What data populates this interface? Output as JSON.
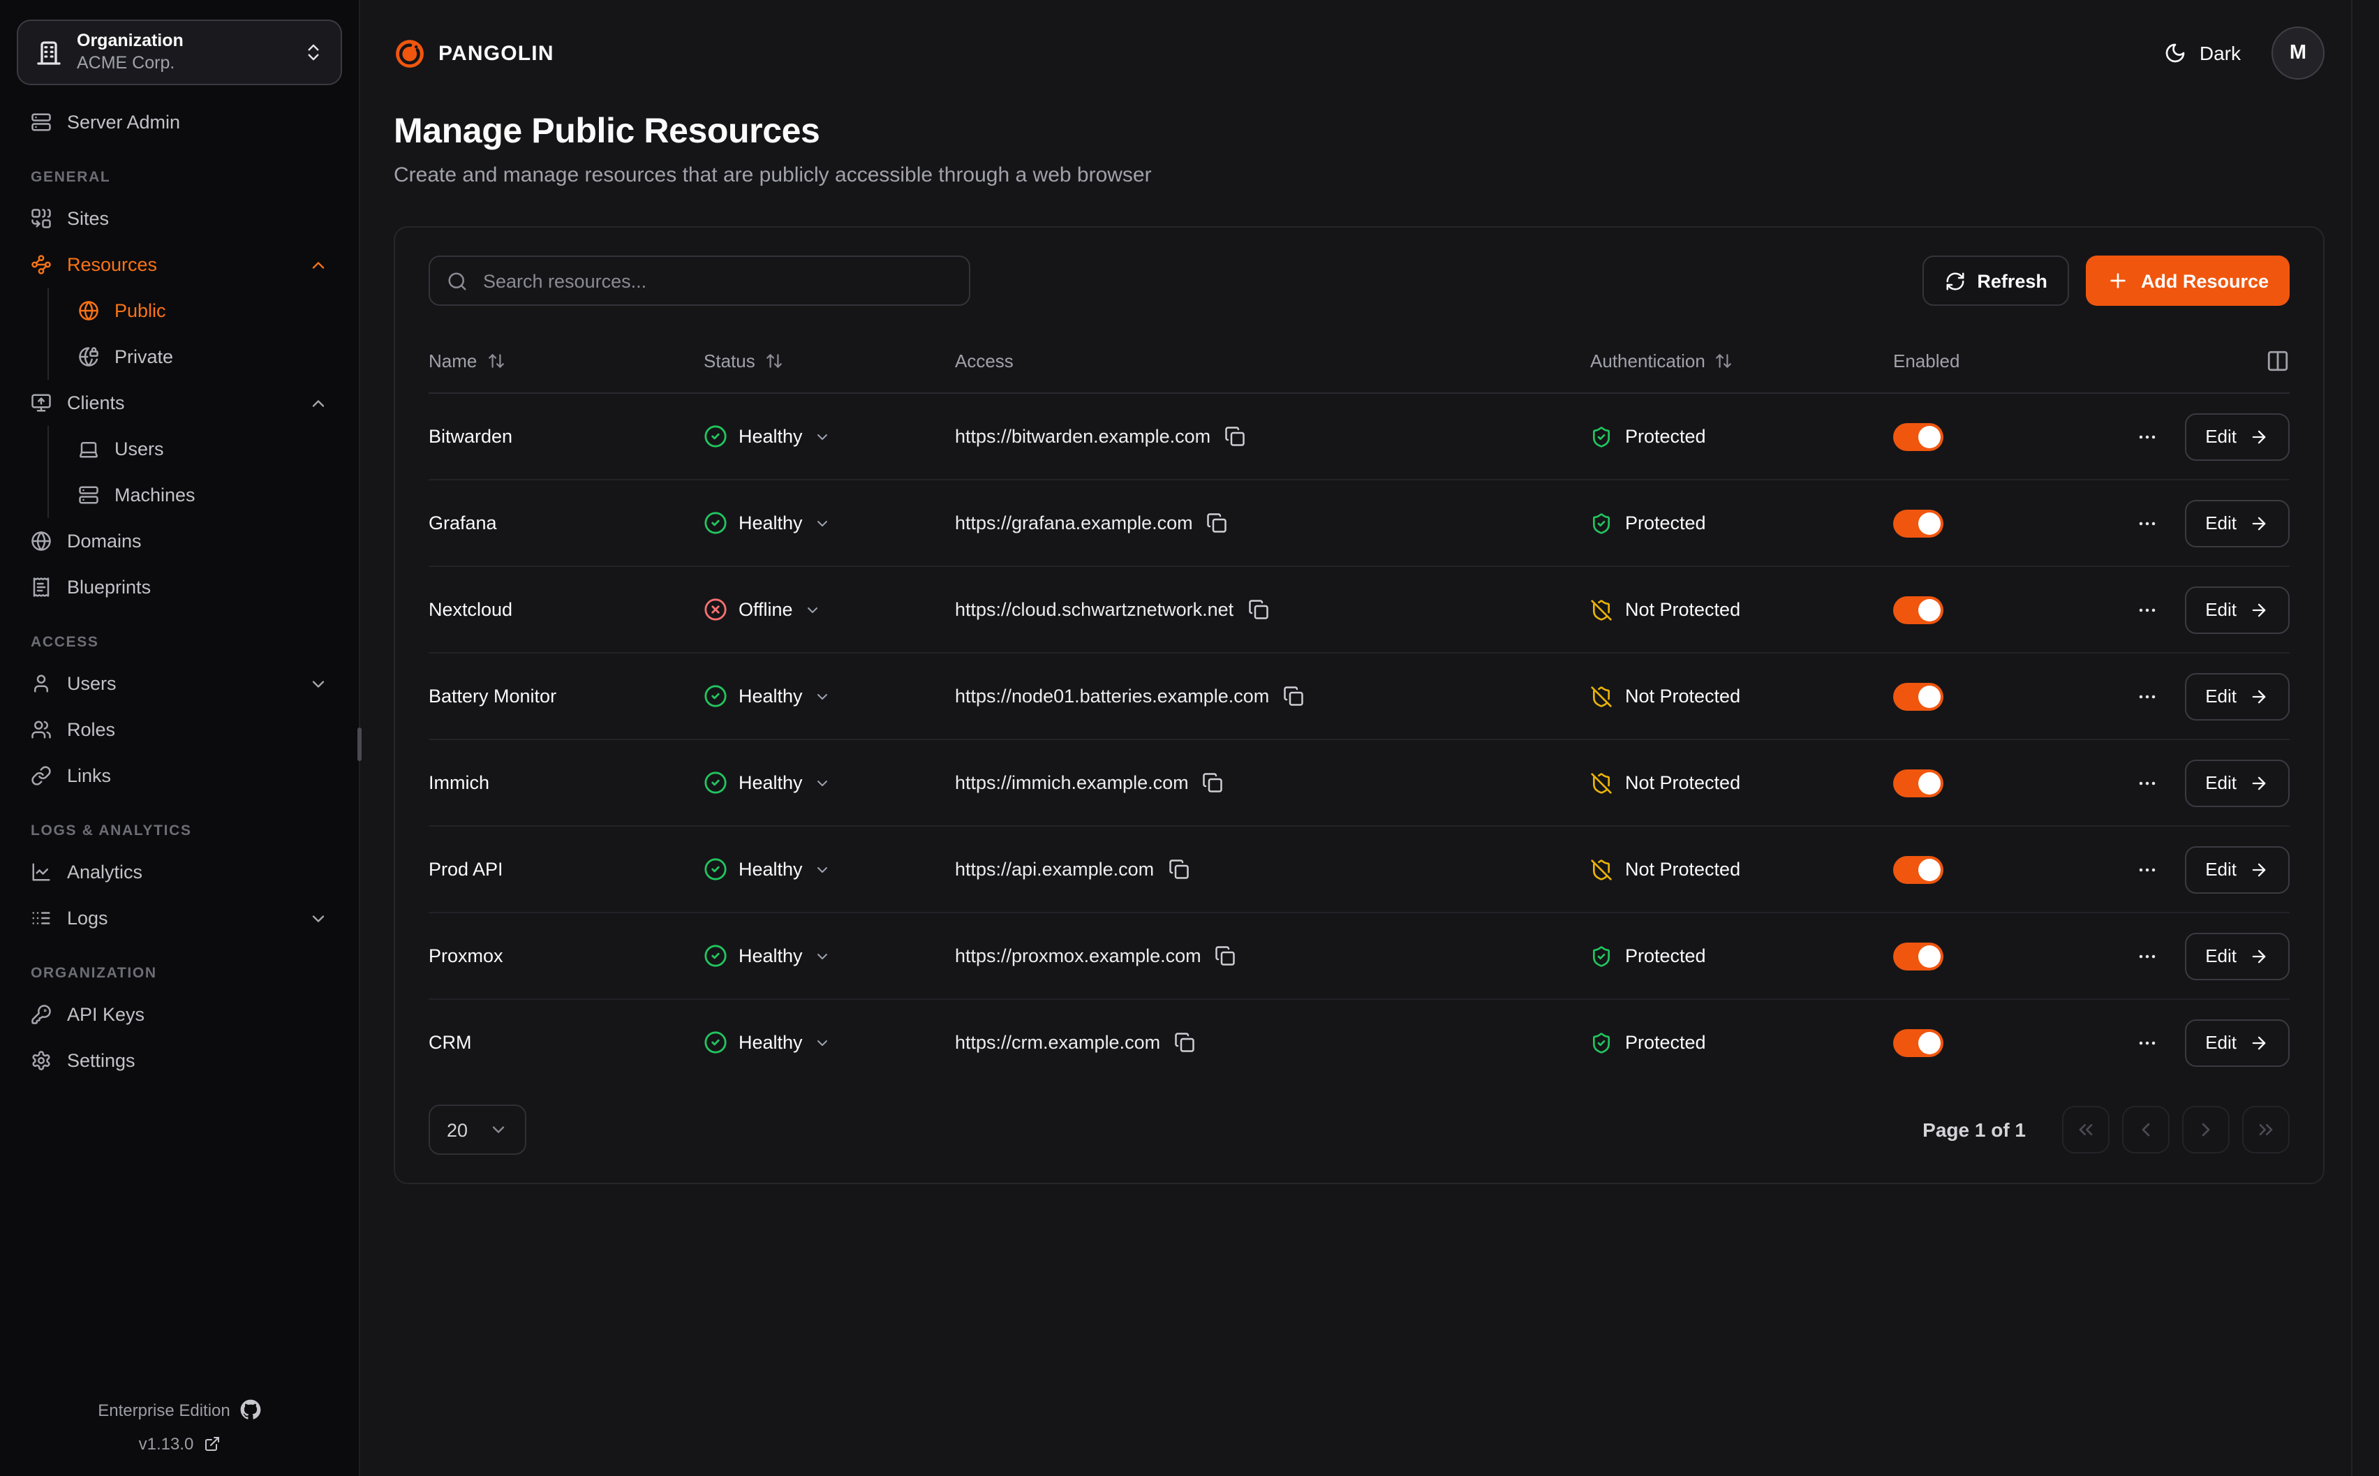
{
  "brand": {
    "name": "PANGOLIN"
  },
  "colors": {
    "accent": "#f0560e",
    "accent_text": "#f97316",
    "healthy": "#22c55e",
    "offline": "#f87171",
    "protected": "#22c55e",
    "not_protected": "#eab308",
    "sidebar_bg": "#0b0b0d",
    "page_bg": "#151518"
  },
  "topbar": {
    "theme_toggle_label": "Dark",
    "theme_icon": "moon",
    "avatar_initial": "M"
  },
  "org_selector": {
    "label": "Organization",
    "value": "ACME Corp.",
    "icon": "building"
  },
  "sidebar": {
    "standalone": [
      {
        "id": "server-admin",
        "label": "Server Admin",
        "icon": "server"
      }
    ],
    "sections": [
      {
        "label": "GENERAL",
        "items": [
          {
            "id": "sites",
            "label": "Sites",
            "icon": "combine"
          },
          {
            "id": "resources",
            "label": "Resources",
            "icon": "waypoints",
            "active": true,
            "chevron": "up",
            "chevron_accent": true,
            "children": [
              {
                "id": "public",
                "label": "Public",
                "icon": "globe",
                "active": true
              },
              {
                "id": "private",
                "label": "Private",
                "icon": "globe-lock"
              }
            ]
          },
          {
            "id": "clients",
            "label": "Clients",
            "icon": "monitor-up",
            "chevron": "up",
            "children": [
              {
                "id": "client-users",
                "label": "Users",
                "icon": "laptop"
              },
              {
                "id": "machines",
                "label": "Machines",
                "icon": "server"
              }
            ]
          },
          {
            "id": "domains",
            "label": "Domains",
            "icon": "globe"
          },
          {
            "id": "blueprints",
            "label": "Blueprints",
            "icon": "receipt"
          }
        ]
      },
      {
        "label": "ACCESS",
        "items": [
          {
            "id": "users",
            "label": "Users",
            "icon": "user",
            "chevron": "down"
          },
          {
            "id": "roles",
            "label": "Roles",
            "icon": "users"
          },
          {
            "id": "links",
            "label": "Links",
            "icon": "link"
          }
        ]
      },
      {
        "label": "LOGS & ANALYTICS",
        "items": [
          {
            "id": "analytics",
            "label": "Analytics",
            "icon": "chart"
          },
          {
            "id": "logs",
            "label": "Logs",
            "icon": "logs",
            "chevron": "down"
          }
        ]
      },
      {
        "label": "ORGANIZATION",
        "items": [
          {
            "id": "api-keys",
            "label": "API Keys",
            "icon": "key"
          },
          {
            "id": "settings",
            "label": "Settings",
            "icon": "gear"
          }
        ]
      }
    ],
    "footer": {
      "edition": "Enterprise Edition",
      "edition_icon": "github",
      "version": "v1.13.0",
      "version_icon": "external-link"
    }
  },
  "page": {
    "title": "Manage Public Resources",
    "subtitle": "Create and manage resources that are publicly accessible through a web browser"
  },
  "toolbar": {
    "search_placeholder": "Search resources...",
    "search_icon": "search",
    "refresh_label": "Refresh",
    "refresh_icon": "refresh",
    "add_label": "Add Resource",
    "add_icon": "plus"
  },
  "table": {
    "edit_label": "Edit",
    "columns_icon": "columns-2",
    "columns": [
      {
        "label": "Name",
        "sortable": true
      },
      {
        "label": "Status",
        "sortable": true
      },
      {
        "label": "Access",
        "sortable": false
      },
      {
        "label": "Authentication",
        "sortable": true
      },
      {
        "label": "Enabled",
        "sortable": false
      }
    ],
    "rows": [
      {
        "name": "Bitwarden",
        "status": "Healthy",
        "status_state": "healthy",
        "url": "https://bitwarden.example.com",
        "auth": "Protected",
        "auth_state": "protected",
        "enabled": true
      },
      {
        "name": "Grafana",
        "status": "Healthy",
        "status_state": "healthy",
        "url": "https://grafana.example.com",
        "auth": "Protected",
        "auth_state": "protected",
        "enabled": true
      },
      {
        "name": "Nextcloud",
        "status": "Offline",
        "status_state": "offline",
        "url": "https://cloud.schwartznetwork.net",
        "auth": "Not Protected",
        "auth_state": "not-protected",
        "enabled": true
      },
      {
        "name": "Battery Monitor",
        "status": "Healthy",
        "status_state": "healthy",
        "url": "https://node01.batteries.example.com",
        "auth": "Not Protected",
        "auth_state": "not-protected",
        "enabled": true
      },
      {
        "name": "Immich",
        "status": "Healthy",
        "status_state": "healthy",
        "url": "https://immich.example.com",
        "auth": "Not Protected",
        "auth_state": "not-protected",
        "enabled": true
      },
      {
        "name": "Prod API",
        "status": "Healthy",
        "status_state": "healthy",
        "url": "https://api.example.com",
        "auth": "Not Protected",
        "auth_state": "not-protected",
        "enabled": true
      },
      {
        "name": "Proxmox",
        "status": "Healthy",
        "status_state": "healthy",
        "url": "https://proxmox.example.com",
        "auth": "Protected",
        "auth_state": "protected",
        "enabled": true
      },
      {
        "name": "CRM",
        "status": "Healthy",
        "status_state": "healthy",
        "url": "https://crm.example.com",
        "auth": "Protected",
        "auth_state": "protected",
        "enabled": true
      }
    ]
  },
  "pagination": {
    "page_size": "20",
    "page_info": "Page 1 of 1",
    "buttons": [
      {
        "id": "first-page",
        "icon": "chevrons-left"
      },
      {
        "id": "prev-page",
        "icon": "chevron-left"
      },
      {
        "id": "next-page",
        "icon": "chevron-right"
      },
      {
        "id": "last-page",
        "icon": "chevrons-right"
      }
    ]
  }
}
